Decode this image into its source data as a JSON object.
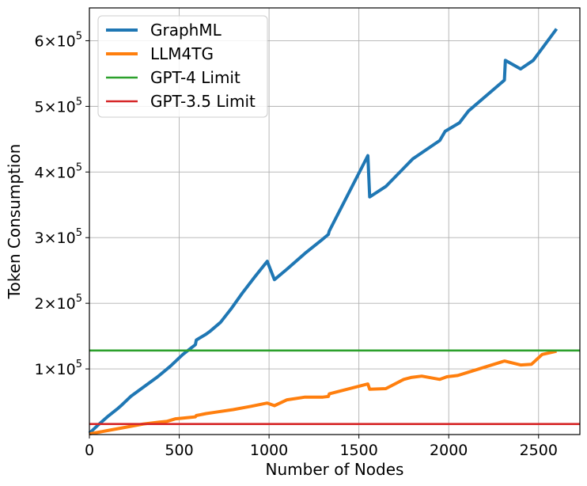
{
  "chart_data": {
    "type": "line",
    "xlabel": "Number of Nodes",
    "ylabel": "Token Consumption",
    "xlim": [
      0,
      2730
    ],
    "ylim": [
      0,
      650000
    ],
    "grid": true,
    "legend_position": "top-left",
    "xticks": [
      0,
      500,
      1000,
      1500,
      2000,
      2500
    ],
    "xtick_labels": [
      "0",
      "500",
      "1000",
      "1500",
      "2000",
      "2500"
    ],
    "yticks": [
      100000,
      200000,
      300000,
      400000,
      500000,
      600000
    ],
    "ytick_labels": [
      {
        "mantissa": "1×10",
        "exp": "5"
      },
      {
        "mantissa": "2×10",
        "exp": "5"
      },
      {
        "mantissa": "3×10",
        "exp": "5"
      },
      {
        "mantissa": "4×10",
        "exp": "5"
      },
      {
        "mantissa": "5×10",
        "exp": "5"
      },
      {
        "mantissa": "6×10",
        "exp": "5"
      }
    ],
    "series": [
      {
        "name": "GraphML",
        "color": "#1f77b4",
        "style": "line",
        "x": [
          0,
          50,
          100,
          160,
          180,
          230,
          300,
          380,
          450,
          520,
          590,
          595,
          650,
          670,
          730,
          790,
          850,
          920,
          990,
          1030,
          1100,
          1200,
          1300,
          1330,
          1335,
          1550,
          1560,
          1650,
          1800,
          1810,
          1950,
          1980,
          2060,
          2110,
          2310,
          2315,
          2400,
          2470,
          2530,
          2600
        ],
        "y": [
          2000,
          15000,
          27000,
          40000,
          45000,
          58000,
          72000,
          88000,
          104000,
          122000,
          137000,
          144000,
          153000,
          157000,
          171000,
          192000,
          215000,
          240000,
          264000,
          236000,
          252000,
          276000,
          298000,
          305000,
          310000,
          425000,
          362000,
          378000,
          420000,
          422000,
          448000,
          462000,
          475000,
          493000,
          540000,
          570000,
          557000,
          570000,
          592000,
          618000
        ]
      },
      {
        "name": "LLM4TG",
        "color": "#ff7f0e",
        "style": "line",
        "x": [
          0,
          100,
          200,
          300,
          390,
          430,
          480,
          520,
          590,
          595,
          650,
          700,
          800,
          900,
          990,
          1030,
          1100,
          1200,
          1300,
          1330,
          1335,
          1550,
          1560,
          1650,
          1750,
          1790,
          1850,
          1950,
          1990,
          2050,
          2110,
          2310,
          2400,
          2460,
          2520,
          2600
        ],
        "y": [
          1000,
          6000,
          11000,
          16000,
          19000,
          20000,
          24000,
          25000,
          27000,
          29000,
          32000,
          34000,
          38000,
          43000,
          48000,
          44000,
          53000,
          57000,
          57000,
          58000,
          62000,
          77000,
          69000,
          70000,
          84000,
          87000,
          89000,
          84000,
          88000,
          90000,
          95000,
          112000,
          106000,
          107000,
          122000,
          127000
        ]
      },
      {
        "name": "GPT-4 Limit",
        "color": "#2ca02c",
        "style": "hline",
        "value": 128000
      },
      {
        "name": "GPT-3.5 Limit",
        "color": "#d62728",
        "style": "hline",
        "value": 16000
      }
    ]
  }
}
